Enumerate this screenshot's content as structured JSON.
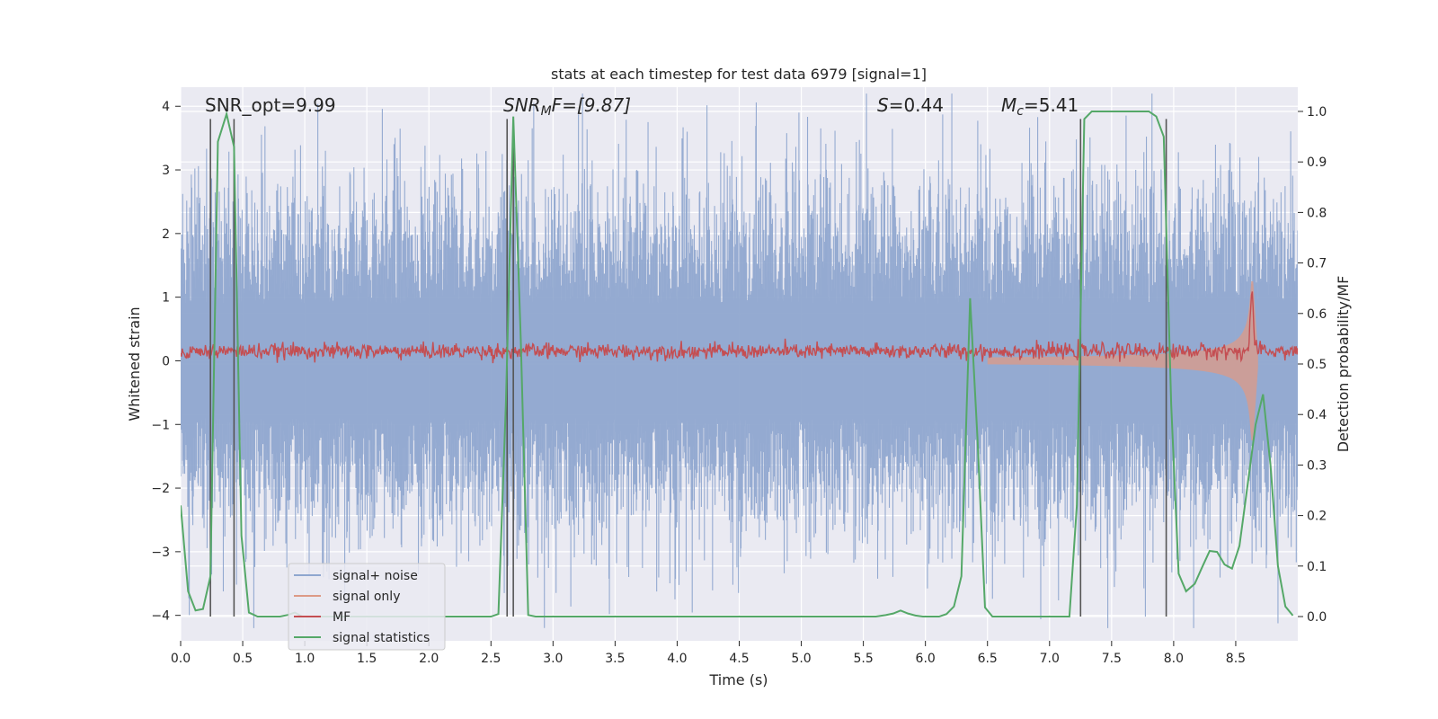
{
  "chart_data": {
    "type": "line",
    "title": "stats at each timestep for test data 6979 [signal=1]",
    "xlabel": "Time (s)",
    "ylabel": "Whitened strain",
    "ylabel_right": "Detection probability/MF",
    "xlim": [
      0.0,
      9.0
    ],
    "ylim": [
      -4.4,
      4.3
    ],
    "ylim_right": [
      -0.048,
      1.048
    ],
    "x_ticks": [
      "0.0",
      "0.5",
      "1.0",
      "1.5",
      "2.0",
      "2.5",
      "3.0",
      "3.5",
      "4.0",
      "4.5",
      "5.0",
      "5.5",
      "6.0",
      "6.5",
      "7.0",
      "7.5",
      "8.0",
      "8.5"
    ],
    "y_ticks": [
      "4",
      "3",
      "2",
      "1",
      "0",
      "−1",
      "−2",
      "−3",
      "−4"
    ],
    "y_ticks_right": [
      "1.0",
      "0.9",
      "0.8",
      "0.7",
      "0.6",
      "0.5",
      "0.4",
      "0.3",
      "0.2",
      "0.1",
      "0.0"
    ],
    "grid": true,
    "legend_position": "lower-left",
    "annotations": {
      "snr_opt": "SNR_opt=9.99",
      "snr_mf_var": "SNR",
      "snr_mf_sub": "M",
      "snr_mf_rest": "F=[9.87]",
      "s_var": "S",
      "s_rest": "=0.44",
      "mc_var": "M",
      "mc_sub": "c",
      "mc_rest": "=5.41"
    },
    "series": [
      {
        "name": "signal+ noise",
        "color": "#8fa7cf",
        "style": "dense noise, amplitude ~±2.5, peaks to ~±4"
      },
      {
        "name": "signal only",
        "color": "#dd9a86",
        "style": "chirp envelope growing to ~±1.3 near t=8.64 s"
      },
      {
        "name": "MF",
        "color": "#c44e52",
        "style": "noisy band around 0.15 with spike near t=8.64 s"
      },
      {
        "name": "signal statistics",
        "color": "#55a868",
        "x": [
          0.0,
          0.06,
          0.12,
          0.18,
          0.24,
          0.3,
          0.37,
          0.43,
          0.49,
          0.55,
          0.62,
          0.68,
          0.74,
          0.8,
          0.86,
          0.92,
          0.98,
          1.5,
          2.0,
          2.5,
          2.56,
          2.62,
          2.68,
          2.74,
          2.8,
          2.86,
          3.0,
          4.0,
          5.0,
          5.6,
          5.68,
          5.74,
          5.8,
          5.86,
          5.92,
          5.98,
          6.05,
          6.11,
          6.17,
          6.23,
          6.29,
          6.36,
          6.42,
          6.48,
          6.54,
          6.6,
          7.0,
          7.16,
          7.22,
          7.28,
          7.34,
          7.4,
          7.8,
          7.86,
          7.92,
          7.98,
          8.04,
          8.1,
          8.17,
          8.23,
          8.29,
          8.35,
          8.41,
          8.47,
          8.53,
          8.59,
          8.66,
          8.72,
          8.78,
          8.84,
          8.9,
          8.96
        ],
        "y": [
          0.22,
          0.05,
          0.012,
          0.015,
          0.08,
          0.94,
          0.995,
          0.93,
          0.16,
          0.008,
          0.0,
          0.0,
          0.0,
          0.0,
          0.003,
          0.008,
          0.0,
          0.0,
          0.0,
          0.0,
          0.005,
          0.42,
          0.99,
          0.55,
          0.003,
          0.0,
          0.0,
          0.0,
          0.0,
          0.0,
          0.003,
          0.006,
          0.012,
          0.006,
          0.002,
          0.0,
          0.0,
          0.0,
          0.005,
          0.02,
          0.08,
          0.63,
          0.35,
          0.018,
          0.0,
          0.0,
          0.0,
          0.0,
          0.22,
          0.985,
          1.0,
          1.0,
          1.0,
          0.99,
          0.95,
          0.42,
          0.085,
          0.05,
          0.065,
          0.098,
          0.13,
          0.128,
          0.103,
          0.095,
          0.14,
          0.25,
          0.38,
          0.44,
          0.3,
          0.1,
          0.02,
          0.002
        ]
      },
      {
        "name": "vertical markers",
        "color": "#555555",
        "x": [
          0.24,
          0.43,
          2.63,
          2.68,
          7.25,
          7.94
        ]
      }
    ]
  }
}
